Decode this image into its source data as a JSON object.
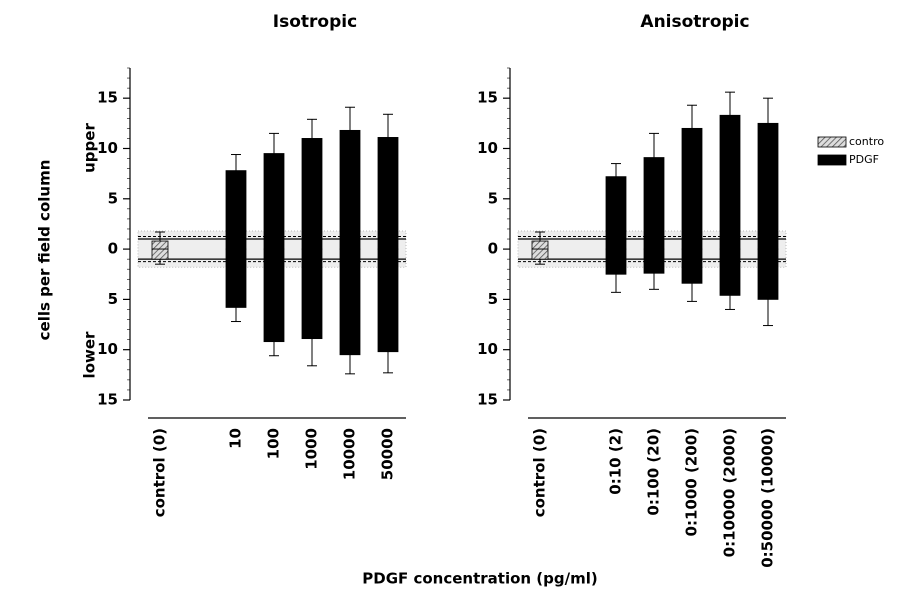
{
  "chart_data": [
    {
      "type": "bar",
      "title": "Isotropic",
      "categories": [
        "control (0)",
        "10",
        "100",
        "1000",
        "10000",
        "50000"
      ],
      "groups": [
        0,
        1,
        1,
        1,
        1,
        1
      ],
      "upper": [
        0.8,
        7.8,
        9.5,
        11,
        11.8,
        11.1
      ],
      "upper_err": [
        0.9,
        1.6,
        2,
        1.9,
        2.3,
        2.3
      ],
      "lower": [
        -1,
        -5.8,
        -9.2,
        -8.9,
        -10.5,
        -10.2
      ],
      "lower_err": [
        0.5,
        1.4,
        1.4,
        2.7,
        1.9,
        2.1
      ],
      "ylim": [
        -15,
        18
      ],
      "yticks": [
        {
          "value": -15,
          "label": "15"
        },
        {
          "value": -10,
          "label": "10"
        },
        {
          "value": -5,
          "label": "5"
        },
        0,
        5,
        10,
        15
      ],
      "reference_lines": [
        1,
        -1
      ],
      "reference_dashed": [
        1.25,
        -1.25
      ],
      "reference_band": [
        -1.8,
        1.8
      ]
    },
    {
      "type": "bar",
      "title": "Anisotropic",
      "categories": [
        "control (0)",
        "0:10 (2)",
        "0:100 (20)",
        "0:1000 (200)",
        "0:10000 (2000)",
        "0:50000 (10000)"
      ],
      "groups": [
        0,
        1,
        1,
        1,
        1,
        1
      ],
      "upper": [
        0.8,
        7.2,
        9.1,
        12,
        13.3,
        12.5
      ],
      "upper_err": [
        0.9,
        1.3,
        2.4,
        2.3,
        2.3,
        2.5
      ],
      "lower": [
        -1,
        -2.5,
        -2.4,
        -3.4,
        -4.6,
        -5
      ],
      "lower_err": [
        0.5,
        1.8,
        1.6,
        1.8,
        1.4,
        2.6
      ],
      "ylim": [
        -15,
        18
      ],
      "yticks": [
        {
          "value": -15,
          "label": "15"
        },
        {
          "value": -10,
          "label": "10"
        },
        {
          "value": -5,
          "label": "5"
        },
        0,
        5,
        10,
        15
      ],
      "reference_lines": [
        1,
        -1
      ],
      "reference_dashed": [
        1.25,
        -1.25
      ],
      "reference_band": [
        -1.8,
        1.8
      ]
    }
  ],
  "xlabel": "PDGF concentration (pg/ml)",
  "ylabel": "cells per field column",
  "side_labels": [
    "upper",
    "lower"
  ],
  "legend": [
    {
      "name": "contro",
      "color": "#666666",
      "pattern": "hatch"
    },
    {
      "name": "PDGF",
      "color": "#000000"
    }
  ]
}
